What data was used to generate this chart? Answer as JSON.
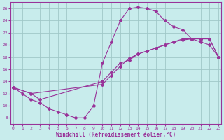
{
  "xlabel": "Windchill (Refroidissement éolien,°C)",
  "xlim": [
    -0.3,
    23.3
  ],
  "ylim": [
    7,
    27
  ],
  "xticks": [
    0,
    1,
    2,
    3,
    4,
    5,
    6,
    7,
    8,
    9,
    10,
    11,
    12,
    13,
    14,
    15,
    16,
    17,
    18,
    19,
    20,
    21,
    22,
    23
  ],
  "yticks": [
    8,
    10,
    12,
    14,
    16,
    18,
    20,
    22,
    24,
    26
  ],
  "bg_color": "#c8ecec",
  "grid_color": "#a0c8c8",
  "line_color": "#993399",
  "line1_x": [
    0,
    1,
    2,
    3,
    4,
    5,
    6,
    7,
    8,
    9,
    10,
    11,
    12,
    13,
    14,
    15,
    16,
    17,
    18,
    19,
    20,
    21,
    22,
    23
  ],
  "line1_y": [
    13,
    12,
    11,
    10.5,
    9.5,
    9,
    8.5,
    8,
    8,
    10,
    17,
    20.5,
    24,
    26,
    26.2,
    26,
    25.5,
    24,
    23,
    22.5,
    21,
    20.5,
    20,
    18
  ],
  "line2_x": [
    0,
    2,
    3,
    10,
    11,
    12,
    13,
    14,
    15,
    16,
    17,
    18,
    19,
    20,
    21,
    22,
    23
  ],
  "line2_y": [
    13,
    12,
    11,
    14,
    15.5,
    17,
    17.5,
    18.5,
    19,
    19.5,
    20,
    20.5,
    20.8,
    21,
    21,
    21,
    18
  ],
  "line3_x": [
    0,
    2,
    10,
    11,
    12,
    13,
    14,
    15,
    16,
    17,
    18,
    19,
    20,
    21,
    22,
    23
  ],
  "line3_y": [
    13,
    12,
    13.5,
    15,
    16.5,
    17.8,
    18.5,
    19,
    19.5,
    20,
    20.5,
    21,
    21,
    21,
    21,
    18
  ]
}
